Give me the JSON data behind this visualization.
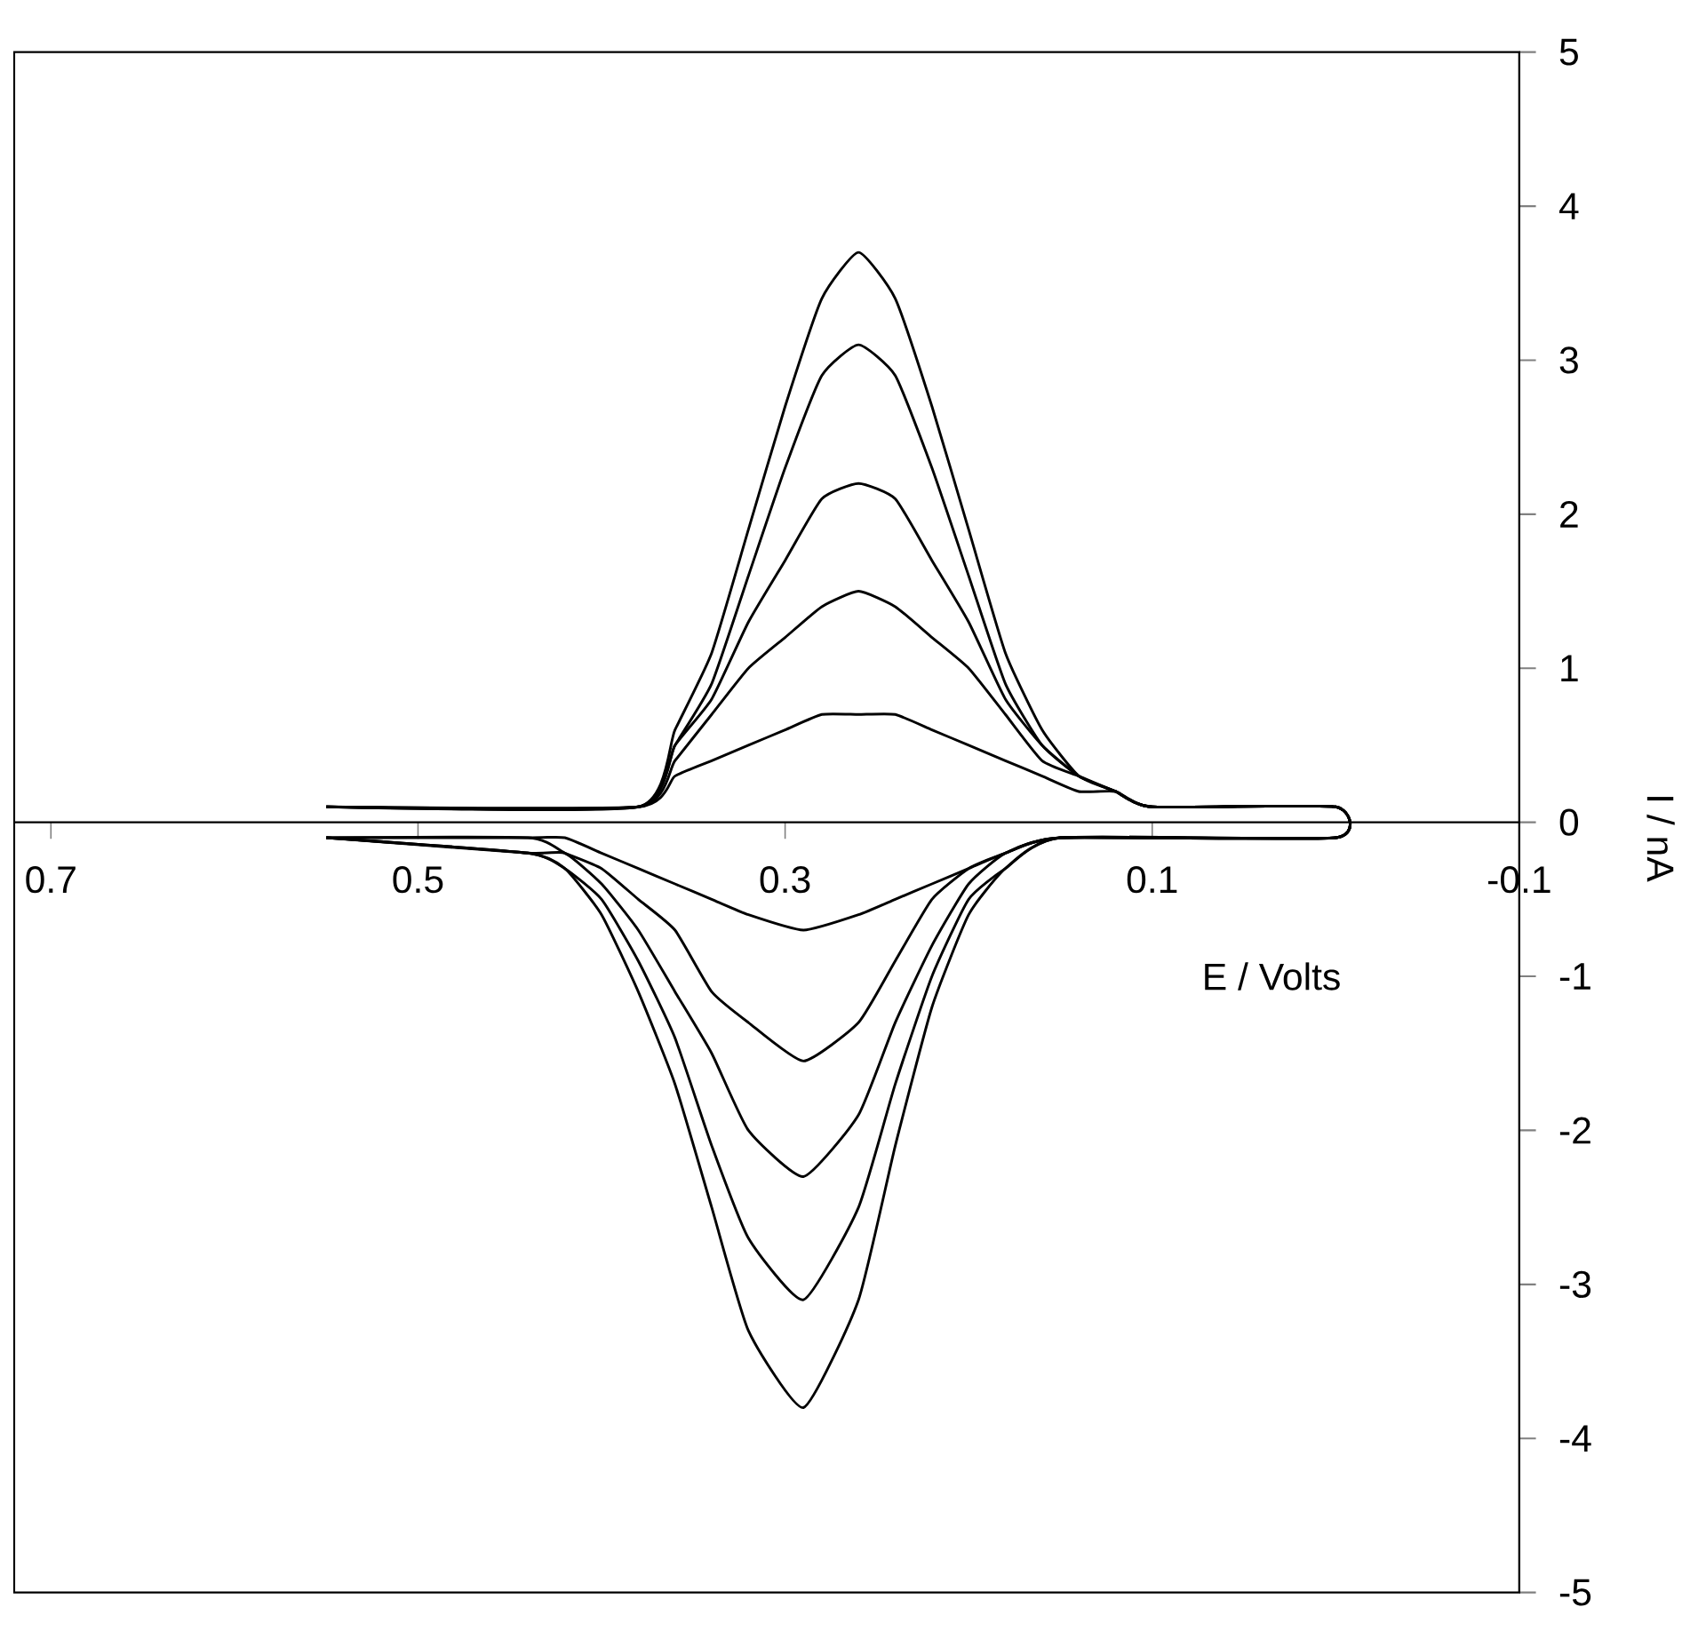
{
  "chart_data": {
    "type": "line",
    "xlabel": "E / Volts",
    "ylabel": "I / nA",
    "xlim": [
      0.72,
      -0.1
    ],
    "xticks": [
      0.7,
      0.5,
      0.3,
      0.1,
      -0.1
    ],
    "ylim": [
      -5,
      5
    ],
    "yticks": [
      -5,
      -4,
      -3,
      -2,
      -1,
      0,
      1,
      2,
      3,
      4,
      5
    ],
    "series": [
      {
        "color": "#000000",
        "x": [
          0.55,
          0.38,
          0.36,
          0.34,
          0.32,
          0.3,
          0.28,
          0.26,
          0.24,
          0.22,
          0.2,
          0.18,
          0.16,
          0.14,
          0.12,
          0.1,
          0.0,
          0.0,
          0.15,
          0.18,
          0.2,
          0.22,
          0.24,
          0.26,
          0.29,
          0.32,
          0.34,
          0.36,
          0.38,
          0.4,
          0.42,
          0.44,
          0.55
        ],
        "values": [
          0.1,
          0.1,
          0.6,
          1.1,
          1.9,
          2.7,
          3.4,
          3.7,
          3.4,
          2.7,
          1.9,
          1.1,
          0.6,
          0.3,
          0.2,
          0.1,
          0.1,
          -0.1,
          -0.1,
          -0.3,
          -0.6,
          -1.2,
          -2.1,
          -3.1,
          -3.8,
          -3.3,
          -2.5,
          -1.7,
          -1.1,
          -0.6,
          -0.3,
          -0.2,
          -0.1
        ]
      },
      {
        "color": "#000000",
        "x": [
          0.55,
          0.38,
          0.36,
          0.34,
          0.32,
          0.3,
          0.28,
          0.26,
          0.24,
          0.22,
          0.2,
          0.18,
          0.16,
          0.14,
          0.12,
          0.1,
          0.0,
          0.0,
          0.15,
          0.18,
          0.2,
          0.22,
          0.24,
          0.26,
          0.29,
          0.32,
          0.34,
          0.36,
          0.38,
          0.4,
          0.42,
          0.44,
          0.55
        ],
        "values": [
          0.1,
          0.1,
          0.5,
          0.9,
          1.6,
          2.3,
          2.9,
          3.1,
          2.9,
          2.3,
          1.6,
          0.9,
          0.5,
          0.3,
          0.2,
          0.1,
          0.1,
          -0.1,
          -0.1,
          -0.3,
          -0.5,
          -1.0,
          -1.7,
          -2.5,
          -3.1,
          -2.7,
          -2.1,
          -1.4,
          -0.9,
          -0.5,
          -0.3,
          -0.2,
          -0.1
        ]
      },
      {
        "color": "#000000",
        "x": [
          0.55,
          0.38,
          0.36,
          0.34,
          0.32,
          0.3,
          0.28,
          0.26,
          0.24,
          0.22,
          0.2,
          0.18,
          0.16,
          0.14,
          0.12,
          0.1,
          0.0,
          0.0,
          0.15,
          0.18,
          0.2,
          0.22,
          0.24,
          0.26,
          0.29,
          0.32,
          0.34,
          0.36,
          0.38,
          0.4,
          0.42,
          0.44,
          0.55
        ],
        "values": [
          0.1,
          0.1,
          0.5,
          0.8,
          1.3,
          1.7,
          2.1,
          2.2,
          2.1,
          1.7,
          1.3,
          0.8,
          0.5,
          0.3,
          0.2,
          0.1,
          0.1,
          -0.1,
          -0.1,
          -0.2,
          -0.4,
          -0.8,
          -1.3,
          -1.9,
          -2.3,
          -2.0,
          -1.5,
          -1.1,
          -0.7,
          -0.4,
          -0.2,
          -0.2,
          -0.1
        ]
      },
      {
        "color": "#000000",
        "x": [
          0.55,
          0.38,
          0.36,
          0.34,
          0.32,
          0.3,
          0.28,
          0.26,
          0.24,
          0.22,
          0.2,
          0.18,
          0.16,
          0.14,
          0.12,
          0.1,
          0.0,
          0.0,
          0.15,
          0.18,
          0.2,
          0.22,
          0.24,
          0.26,
          0.29,
          0.32,
          0.34,
          0.36,
          0.38,
          0.4,
          0.42,
          0.44,
          0.55
        ],
        "values": [
          0.1,
          0.1,
          0.4,
          0.7,
          1.0,
          1.2,
          1.4,
          1.5,
          1.4,
          1.2,
          1.0,
          0.7,
          0.4,
          0.3,
          0.2,
          0.1,
          0.1,
          -0.1,
          -0.1,
          -0.2,
          -0.3,
          -0.5,
          -0.9,
          -1.3,
          -1.55,
          -1.3,
          -1.1,
          -0.7,
          -0.5,
          -0.3,
          -0.2,
          -0.1,
          -0.1
        ]
      },
      {
        "color": "#000000",
        "x": [
          0.55,
          0.38,
          0.36,
          0.34,
          0.32,
          0.3,
          0.28,
          0.26,
          0.24,
          0.22,
          0.2,
          0.18,
          0.16,
          0.14,
          0.12,
          0.1,
          0.0,
          0.0,
          0.15,
          0.18,
          0.2,
          0.22,
          0.24,
          0.26,
          0.29,
          0.32,
          0.34,
          0.36,
          0.38,
          0.4,
          0.42,
          0.44,
          0.55
        ],
        "values": [
          0.1,
          0.1,
          0.3,
          0.4,
          0.5,
          0.6,
          0.7,
          0.7,
          0.7,
          0.6,
          0.5,
          0.4,
          0.3,
          0.2,
          0.2,
          0.1,
          0.1,
          -0.1,
          -0.1,
          -0.2,
          -0.3,
          -0.4,
          -0.5,
          -0.6,
          -0.7,
          -0.6,
          -0.5,
          -0.4,
          -0.3,
          -0.2,
          -0.1,
          -0.1,
          -0.1
        ]
      }
    ]
  }
}
